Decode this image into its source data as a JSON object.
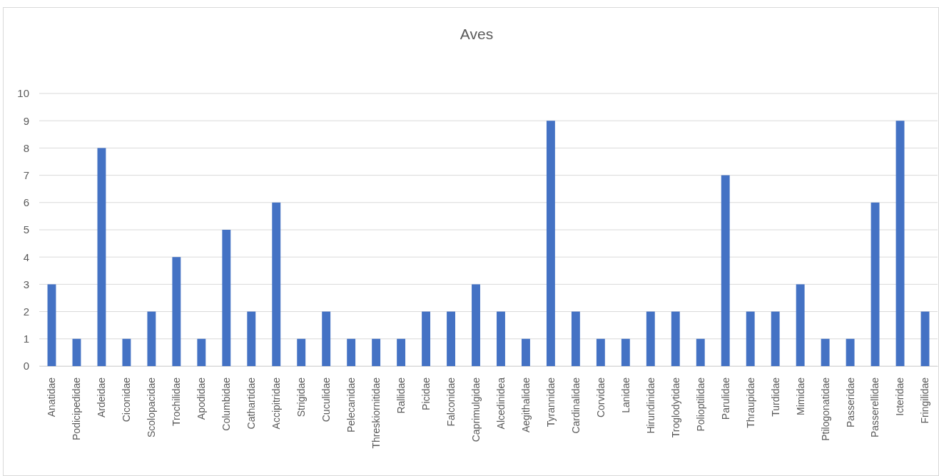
{
  "chart_data": {
    "type": "bar",
    "title": "Aves",
    "categories": [
      "Anatidae",
      "Podicipedidae",
      "Ardeidae",
      "Ciconidae",
      "Scolopacidae",
      "Trochilidae",
      "Apodidae",
      "Columbidae",
      "Cathartidae",
      "Accipitridae",
      "Strigidae",
      "Cuculidae",
      "Pelecanidae",
      "Threskiornitidae",
      "Rallidae",
      "Picidae",
      "Falconidae",
      "Caprimulgidae",
      "Alcedinidea",
      "Aegithalidae",
      "Tyrannidae",
      "Cardinalidae",
      "Corvidae",
      "Lanidae",
      "Hirundinidae",
      "Troglodytidae",
      "Polioptilidae",
      "Parulidae",
      "Thraupidae",
      "Turdidae",
      "Mimidae",
      "Ptilogonatidae",
      "Passeridae",
      "Passerellidae",
      "Icteridae",
      "Fringilidae"
    ],
    "values": [
      3,
      1,
      8,
      1,
      2,
      4,
      1,
      5,
      2,
      6,
      1,
      2,
      1,
      1,
      1,
      2,
      2,
      3,
      2,
      1,
      9,
      2,
      1,
      1,
      2,
      2,
      1,
      7,
      2,
      2,
      3,
      1,
      1,
      6,
      9,
      2
    ],
    "color": "#4472c4",
    "ylim": [
      0,
      10
    ],
    "yticks": [
      0,
      1,
      2,
      3,
      4,
      5,
      6,
      7,
      8,
      9,
      10
    ],
    "grid": "y"
  }
}
